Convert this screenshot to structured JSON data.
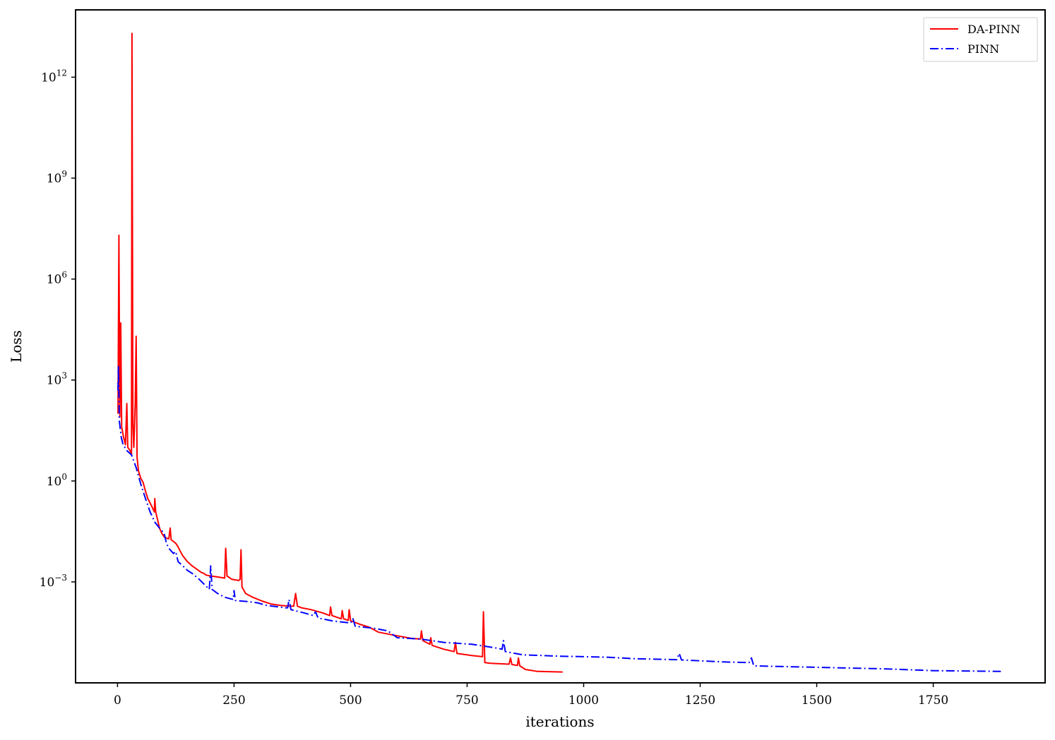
{
  "chart_data": {
    "type": "line",
    "xlabel": "iterations",
    "ylabel": "Loss",
    "yscale": "log",
    "xlim": [
      -90,
      1990
    ],
    "ylim": [
      1e-06,
      100000000000000.0
    ],
    "x_ticks": [
      0,
      250,
      500,
      750,
      1000,
      1250,
      1500,
      1750
    ],
    "y_ticks": [
      {
        "value": 0.001,
        "base": "10",
        "exp": "−3"
      },
      {
        "value": 1,
        "base": "10",
        "exp": "0"
      },
      {
        "value": 1000.0,
        "base": "10",
        "exp": "3"
      },
      {
        "value": 1000000.0,
        "base": "10",
        "exp": "6"
      },
      {
        "value": 1000000000.0,
        "base": "10",
        "exp": "9"
      },
      {
        "value": 1000000000000.0,
        "base": "10",
        "exp": "12"
      }
    ],
    "grid": false,
    "legend_position": "top-right",
    "series": [
      {
        "name": "DA-PINN",
        "color": "#ff0000",
        "dash": "solid",
        "points": [
          [
            1,
            100
          ],
          [
            3,
            20000000.0
          ],
          [
            5,
            80
          ],
          [
            7,
            50000.0
          ],
          [
            9,
            40
          ],
          [
            13,
            20
          ],
          [
            17,
            12
          ],
          [
            20,
            200
          ],
          [
            22,
            10
          ],
          [
            27,
            8
          ],
          [
            30,
            6
          ],
          [
            31,
            20000000000000.0
          ],
          [
            33,
            50
          ],
          [
            35,
            10
          ],
          [
            38,
            200
          ],
          [
            40,
            20000.0
          ],
          [
            42,
            5
          ],
          [
            45,
            2
          ],
          [
            50,
            1.2
          ],
          [
            55,
            0.9
          ],
          [
            60,
            0.5
          ],
          [
            65,
            0.3
          ],
          [
            70,
            0.22
          ],
          [
            75,
            0.16
          ],
          [
            79,
            0.12
          ],
          [
            80,
            0.3
          ],
          [
            82,
            0.12
          ],
          [
            86,
            0.07
          ],
          [
            90,
            0.04
          ],
          [
            95,
            0.028
          ],
          [
            100,
            0.022
          ],
          [
            105,
            0.02
          ],
          [
            110,
            0.019
          ],
          [
            113,
            0.04
          ],
          [
            115,
            0.018
          ],
          [
            120,
            0.016
          ],
          [
            125,
            0.014
          ],
          [
            130,
            0.011
          ],
          [
            135,
            0.008
          ],
          [
            140,
            0.006
          ],
          [
            150,
            0.004
          ],
          [
            160,
            0.003
          ],
          [
            170,
            0.0024
          ],
          [
            180,
            0.0019
          ],
          [
            185,
            0.0018
          ],
          [
            190,
            0.0016
          ],
          [
            200,
            0.0015
          ],
          [
            215,
            0.0014
          ],
          [
            230,
            0.0013
          ],
          [
            232,
            0.01
          ],
          [
            235,
            0.0015
          ],
          [
            245,
            0.0012
          ],
          [
            260,
            0.0011
          ],
          [
            263,
            0.0012
          ],
          [
            265,
            0.009
          ],
          [
            267,
            0.0007
          ],
          [
            275,
            0.00045
          ],
          [
            290,
            0.00035
          ],
          [
            310,
            0.00027
          ],
          [
            330,
            0.00022
          ],
          [
            350,
            0.0002
          ],
          [
            370,
            0.00019
          ],
          [
            378,
            0.00019
          ],
          [
            382,
            0.00045
          ],
          [
            386,
            0.00019
          ],
          [
            395,
            0.00017
          ],
          [
            415,
            0.00015
          ],
          [
            440,
            0.00012
          ],
          [
            455,
            0.0001
          ],
          [
            457,
            0.00018
          ],
          [
            460,
            0.0001
          ],
          [
            480,
            8e-05
          ],
          [
            482,
            0.00014
          ],
          [
            485,
            8e-05
          ],
          [
            495,
            7.2e-05
          ],
          [
            497,
            0.00015
          ],
          [
            500,
            7e-05
          ],
          [
            520,
            5.5e-05
          ],
          [
            540,
            4.5e-05
          ],
          [
            560,
            3.2e-05
          ],
          [
            600,
            2.5e-05
          ],
          [
            630,
            2.1e-05
          ],
          [
            650,
            2e-05
          ],
          [
            652,
            3.5e-05
          ],
          [
            655,
            1.8e-05
          ],
          [
            670,
            1.4e-05
          ],
          [
            672,
            2.2e-05
          ],
          [
            675,
            1.3e-05
          ],
          [
            700,
            1e-05
          ],
          [
            722,
            8.5e-06
          ],
          [
            725,
            1.6e-05
          ],
          [
            728,
            7.5e-06
          ],
          [
            760,
            6.5e-06
          ],
          [
            783,
            6e-06
          ],
          [
            785,
            0.00013
          ],
          [
            788,
            4e-06
          ],
          [
            800,
            3.8e-06
          ],
          [
            840,
            3.6e-06
          ],
          [
            843,
            5.5e-06
          ],
          [
            846,
            3.5e-06
          ],
          [
            858,
            3.3e-06
          ],
          [
            860,
            5.5e-06
          ],
          [
            863,
            3.2e-06
          ],
          [
            875,
            2.5e-06
          ],
          [
            900,
            2.2e-06
          ],
          [
            955,
            2.1e-06
          ]
        ]
      },
      {
        "name": "PINN",
        "color": "#0000ff",
        "dash": "dashdot",
        "points": [
          [
            1,
            500
          ],
          [
            2,
            2500
          ],
          [
            4,
            60
          ],
          [
            8,
            20
          ],
          [
            12,
            12
          ],
          [
            20,
            8
          ],
          [
            30,
            6
          ],
          [
            40,
            2.5
          ],
          [
            50,
            0.8
          ],
          [
            60,
            0.3
          ],
          [
            70,
            0.12
          ],
          [
            80,
            0.06
          ],
          [
            90,
            0.04
          ],
          [
            100,
            0.028
          ],
          [
            105,
            0.014
          ],
          [
            110,
            0.01
          ],
          [
            120,
            0.007
          ],
          [
            125,
            0.008
          ],
          [
            130,
            0.004
          ],
          [
            140,
            0.003
          ],
          [
            150,
            0.0022
          ],
          [
            160,
            0.0018
          ],
          [
            175,
            0.0012
          ],
          [
            190,
            0.00075
          ],
          [
            197,
            0.0006
          ],
          [
            200,
            0.003
          ],
          [
            203,
            0.0006
          ],
          [
            215,
            0.00045
          ],
          [
            230,
            0.00035
          ],
          [
            248,
            0.0003
          ],
          [
            250,
            0.00055
          ],
          [
            253,
            0.00028
          ],
          [
            280,
            0.00026
          ],
          [
            300,
            0.00024
          ],
          [
            320,
            0.0002
          ],
          [
            360,
            0.00017
          ],
          [
            365,
            0.00017
          ],
          [
            368,
            0.0003
          ],
          [
            372,
            0.00015
          ],
          [
            400,
            0.00012
          ],
          [
            420,
            0.0001
          ],
          [
            425,
            0.00013
          ],
          [
            430,
            8.5e-05
          ],
          [
            460,
            7e-05
          ],
          [
            500,
            6e-05
          ],
          [
            505,
            8e-05
          ],
          [
            510,
            4.8e-05
          ],
          [
            550,
            4.2e-05
          ],
          [
            580,
            3.5e-05
          ],
          [
            600,
            2.2e-05
          ],
          [
            650,
            2e-05
          ],
          [
            700,
            1.6e-05
          ],
          [
            760,
            1.4e-05
          ],
          [
            810,
            1.1e-05
          ],
          [
            825,
            1e-05
          ],
          [
            828,
            1.8e-05
          ],
          [
            832,
            8.5e-06
          ],
          [
            870,
            6.8e-06
          ],
          [
            950,
            6.2e-06
          ],
          [
            1050,
            5.8e-06
          ],
          [
            1110,
            5.2e-06
          ],
          [
            1200,
            4.9e-06
          ],
          [
            1205,
            7.5e-06
          ],
          [
            1210,
            4.8e-06
          ],
          [
            1300,
            4.2e-06
          ],
          [
            1355,
            4e-06
          ],
          [
            1360,
            5.5e-06
          ],
          [
            1365,
            3.2e-06
          ],
          [
            1450,
            3e-06
          ],
          [
            1550,
            2.8e-06
          ],
          [
            1650,
            2.6e-06
          ],
          [
            1750,
            2.3e-06
          ],
          [
            1895,
            2.2e-06
          ]
        ]
      }
    ]
  }
}
